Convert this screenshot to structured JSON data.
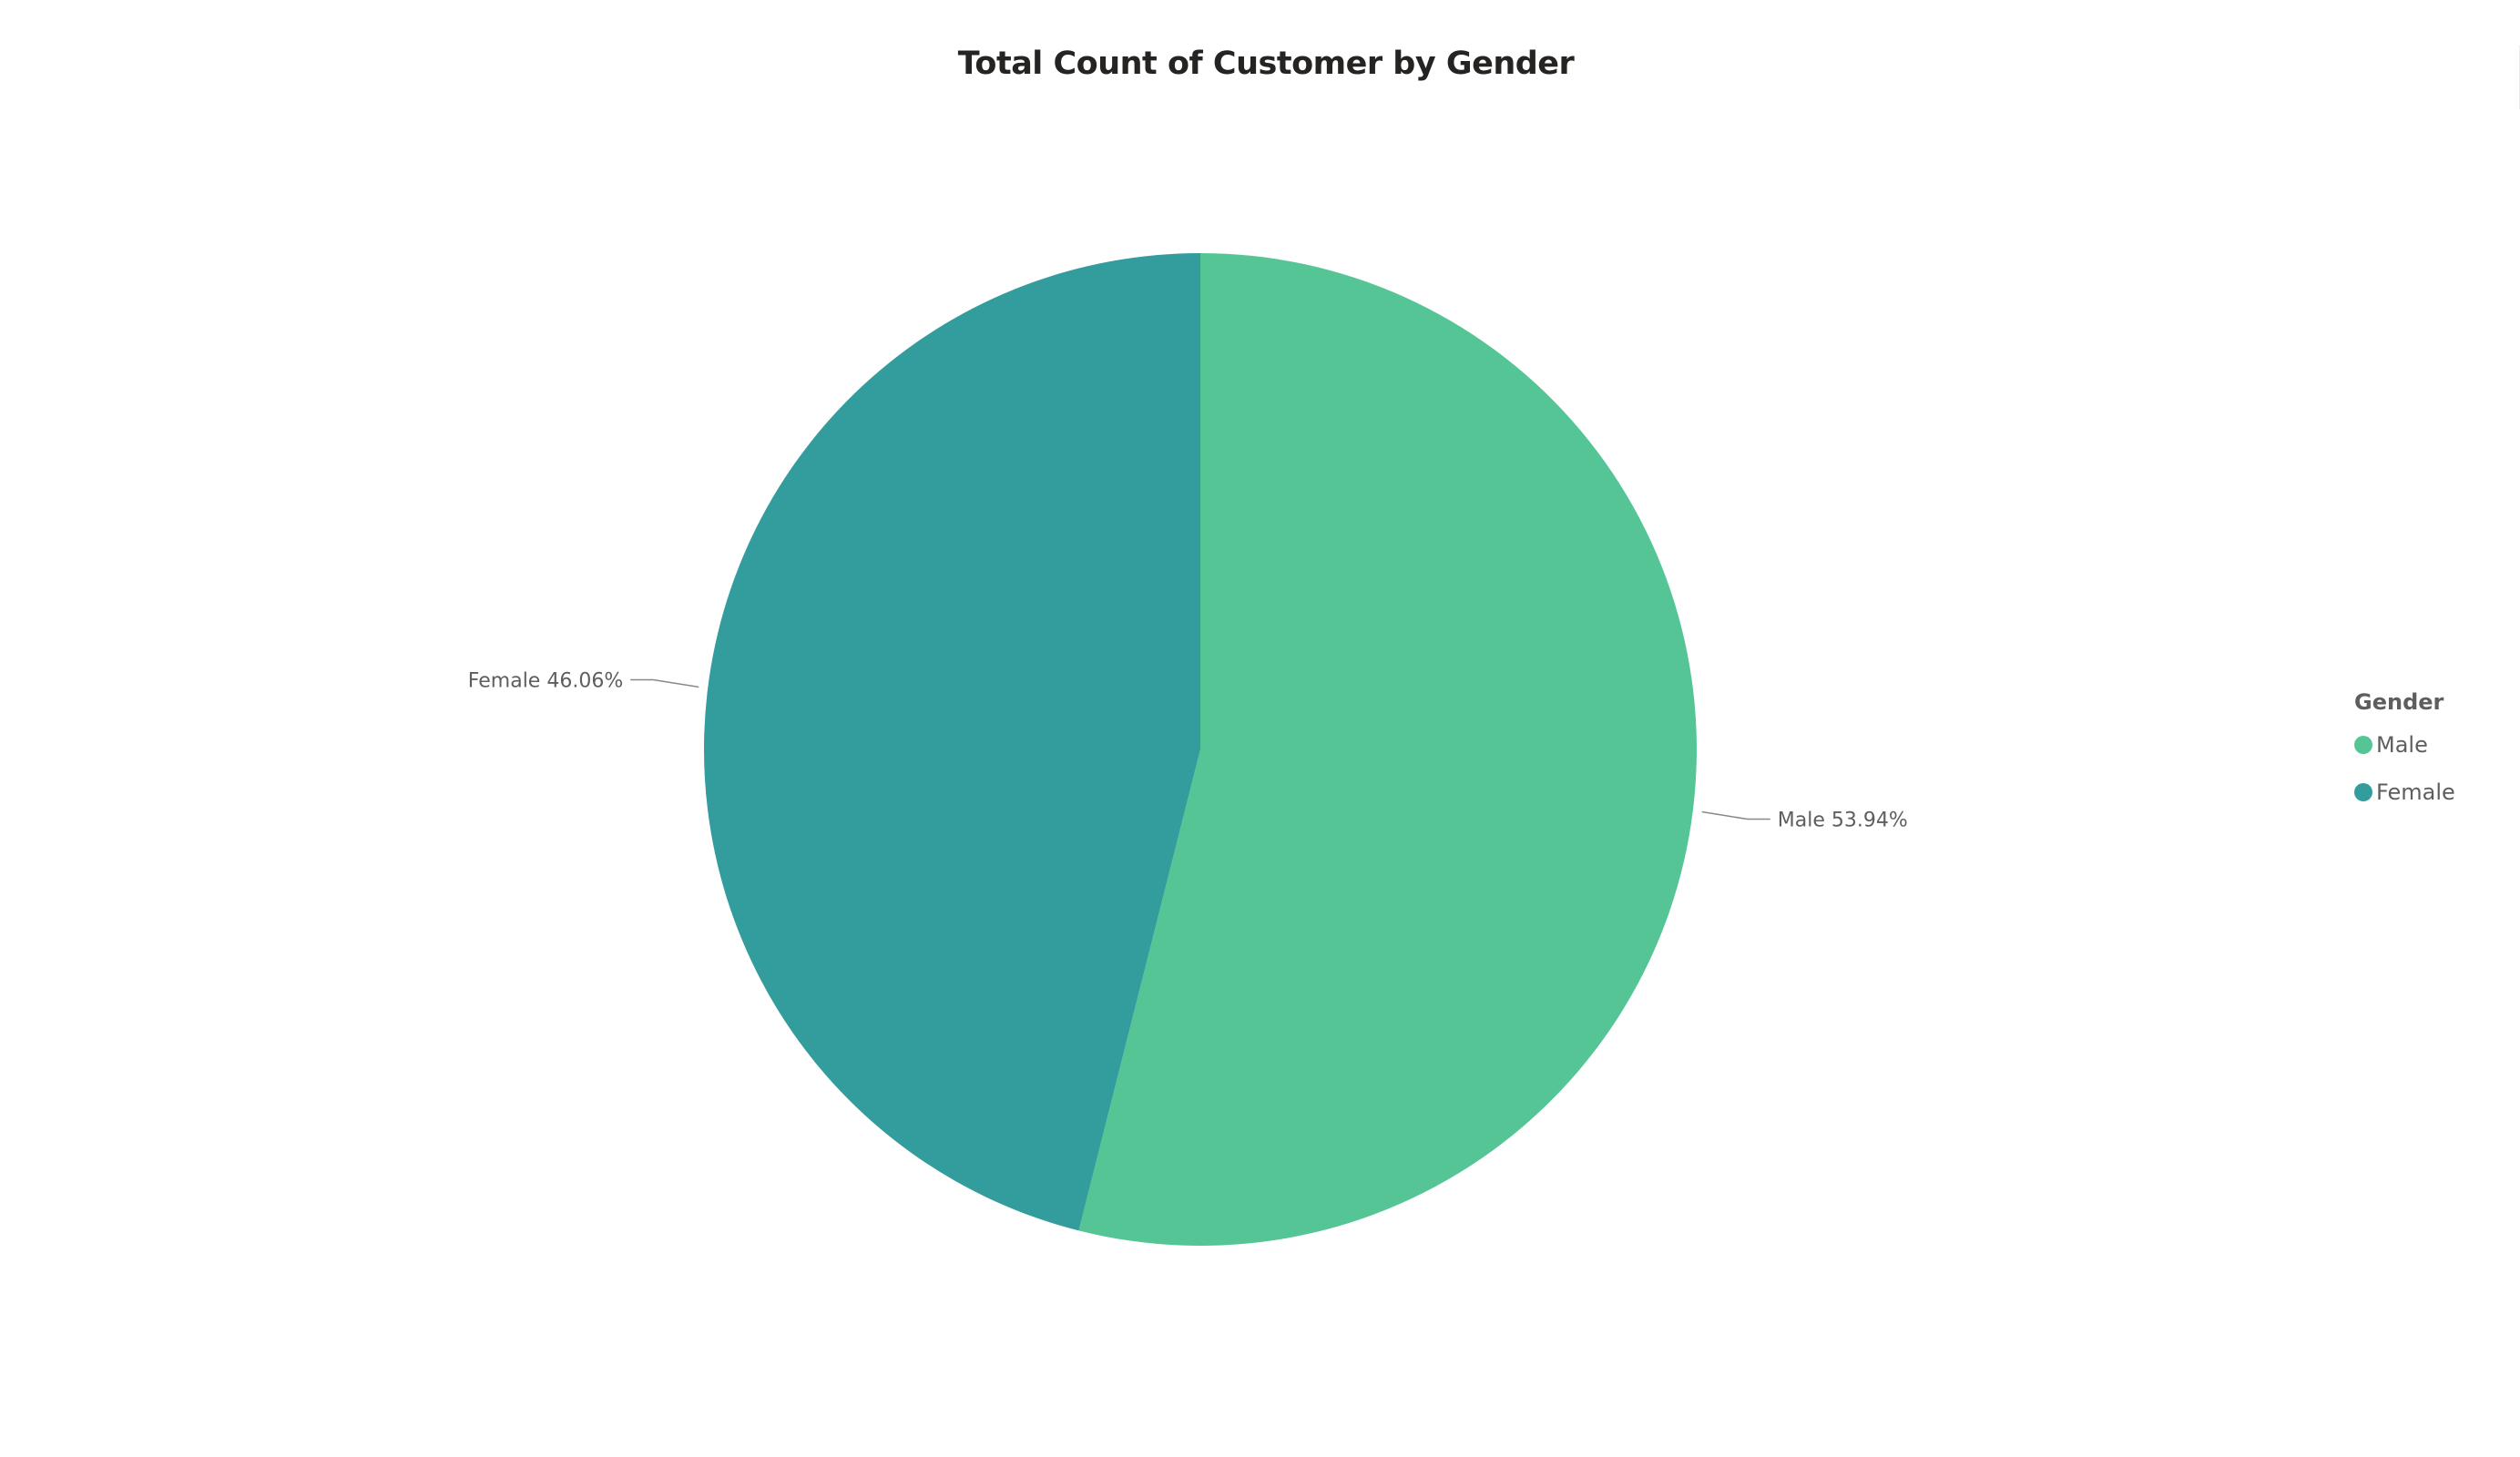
{
  "chart_data": {
    "type": "pie",
    "title": "Total Count of Customer by Gender",
    "legend_title": "Gender",
    "legend_position": "right",
    "slices": [
      {
        "name": "Male",
        "value": 53.94,
        "label": "Male 53.94%",
        "color": "#56C596"
      },
      {
        "name": "Female",
        "value": 46.06,
        "label": "Female 46.06%",
        "color": "#329D9C"
      }
    ]
  }
}
